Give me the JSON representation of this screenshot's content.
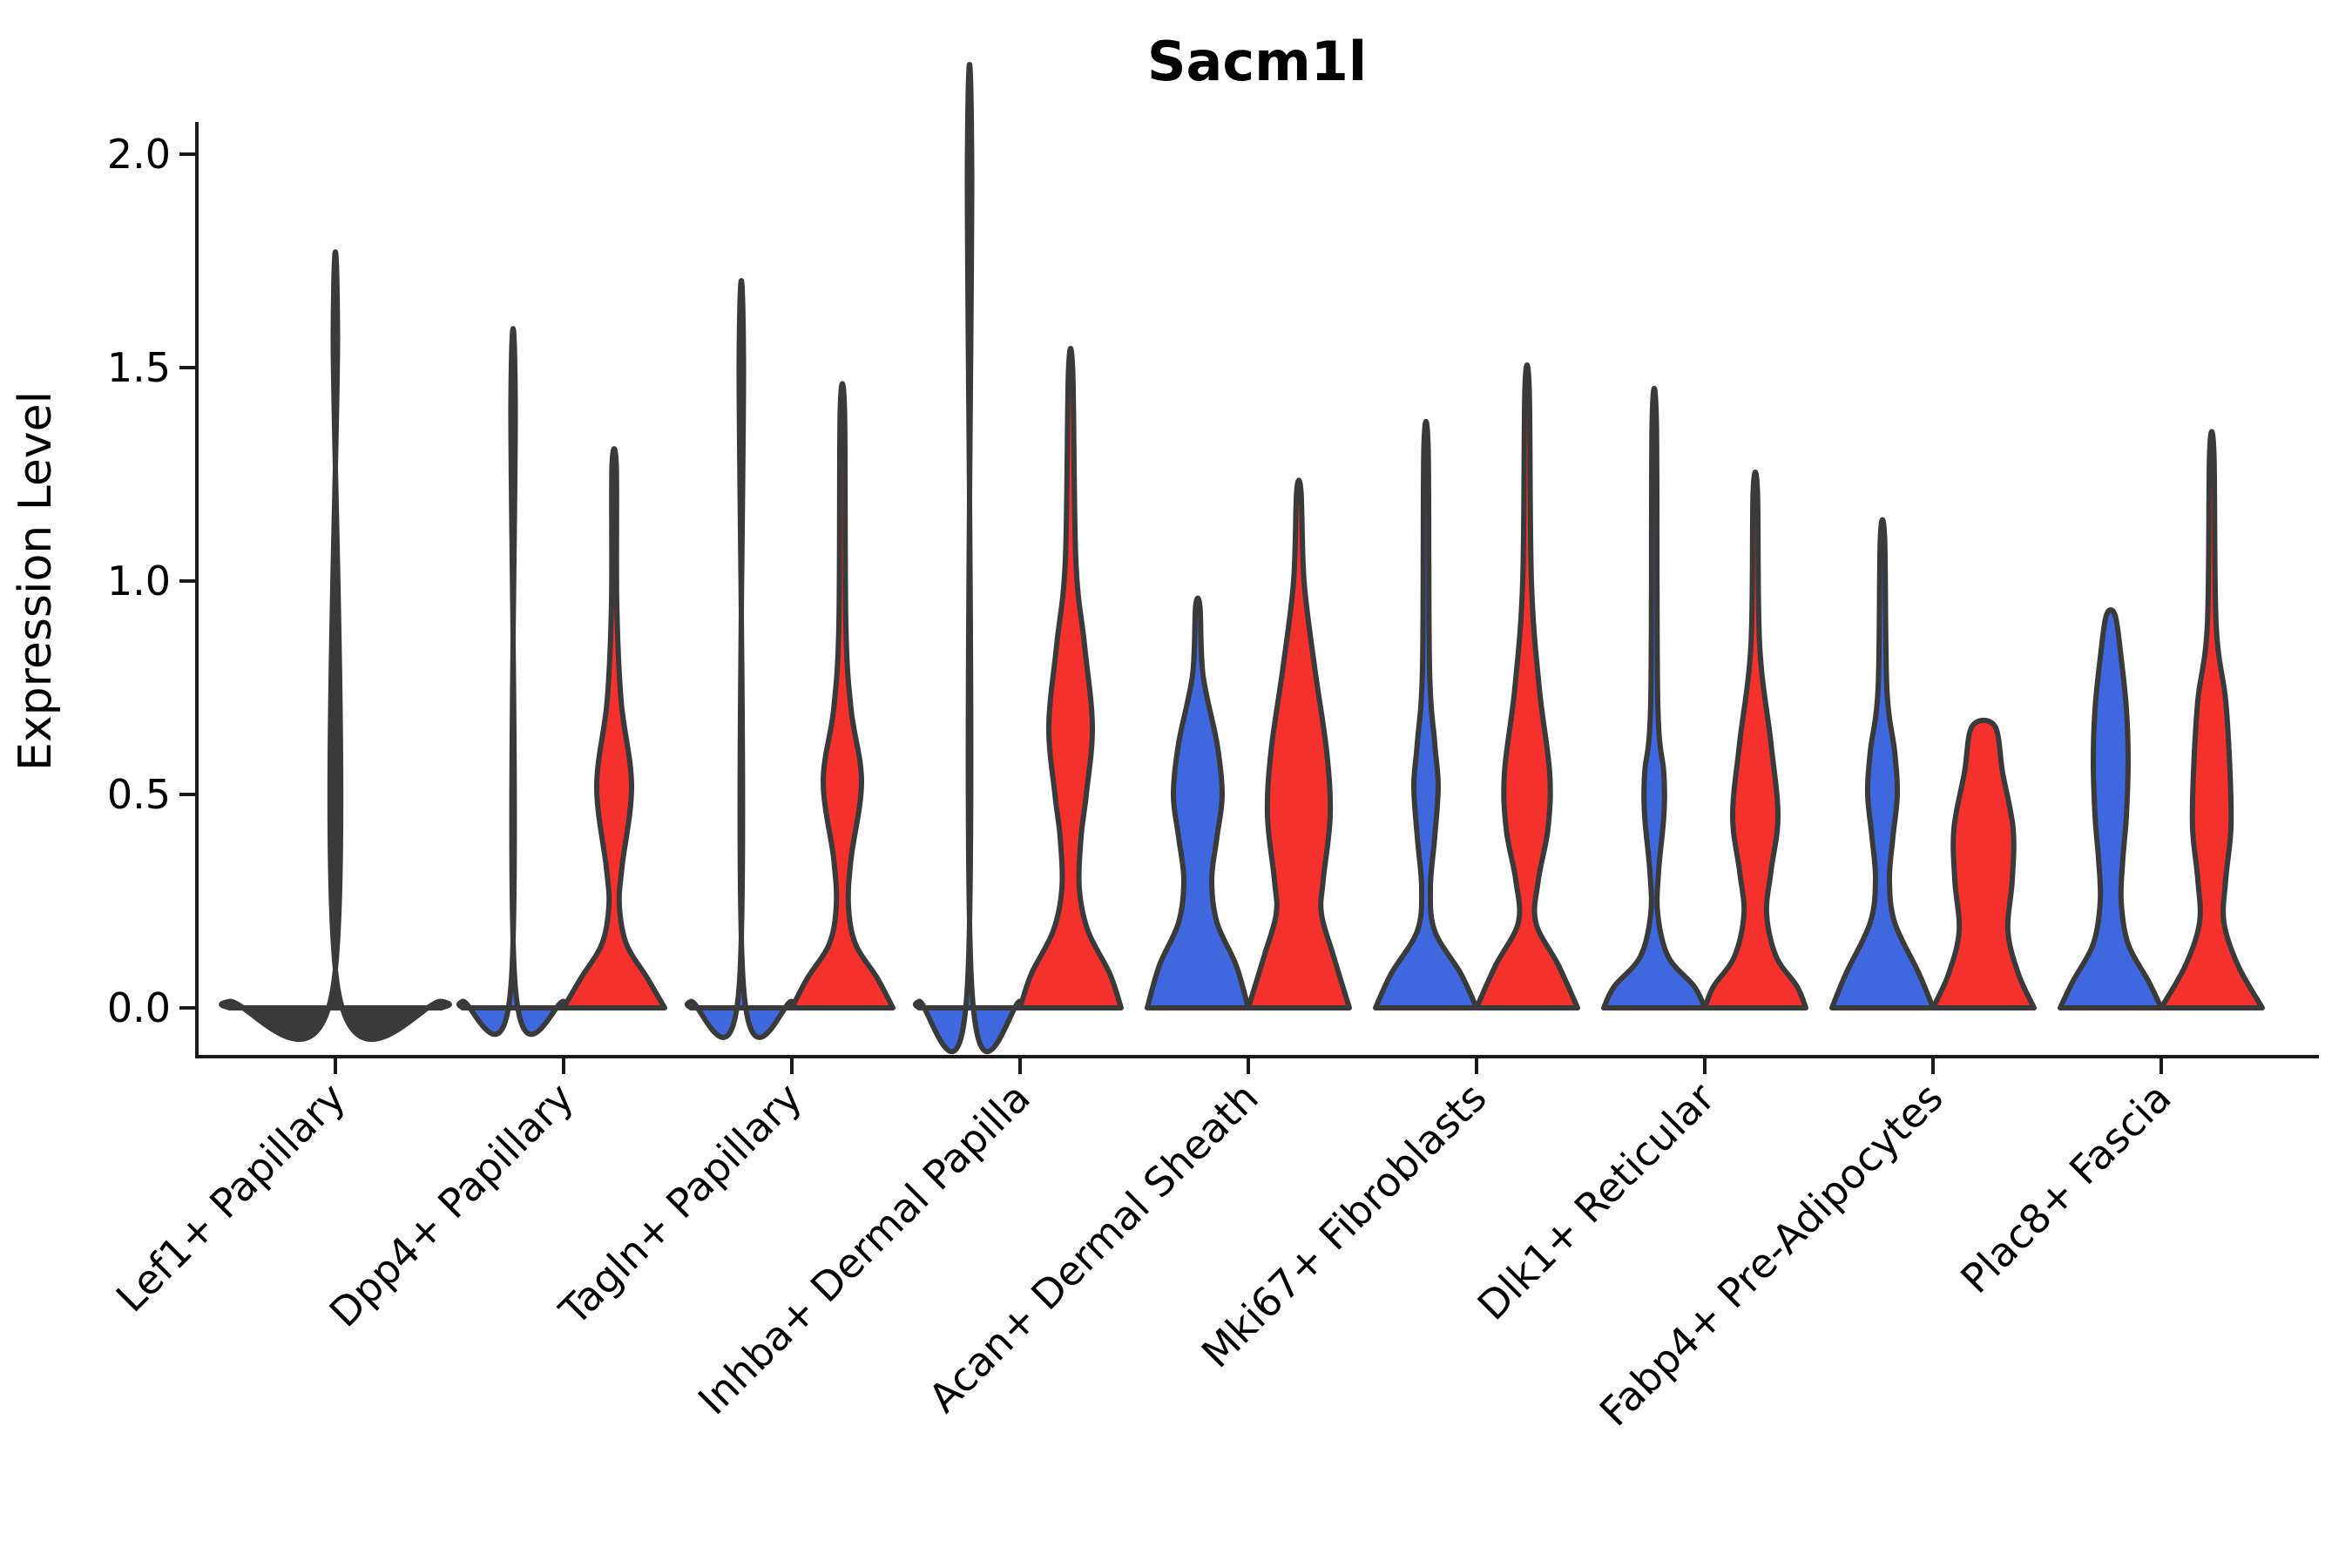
{
  "chart_data": {
    "type": "violin",
    "title": "Sacm1l",
    "ylabel": "Expression Level",
    "xlabel": "",
    "ylim": [
      0.0,
      2.0
    ],
    "y_ticks": [
      0.0,
      0.5,
      1.0,
      1.5,
      2.0
    ],
    "y_tick_labels": [
      "0.0",
      "0.5",
      "1.0",
      "1.5",
      "2.0"
    ],
    "grid": false,
    "legend": "none",
    "categories": [
      "Lef1+ Papillary",
      "Dpp4+ Papillary",
      "Tagln+ Papillary",
      "Inhba+ Dermal Papilla",
      "Acan+ Dermal Sheath",
      "Mki67+ Fibroblasts",
      "Dlk1+ Reticular",
      "Fabp4+ Pre-Adipocytes",
      "Plac8+ Fascia"
    ],
    "series": [
      {
        "name": "blue",
        "color": "#3F68DF"
      },
      {
        "name": "red",
        "color": "#F5312D"
      }
    ],
    "outline_color": "#3A3A3A",
    "violins": [
      {
        "category_index": 0,
        "series": "single",
        "fill": "#3A3A3A",
        "max": 1.58,
        "profile": [
          [
            1.58,
            2.5
          ],
          [
            0.05,
            2.5
          ],
          [
            0.015,
            122
          ],
          [
            0,
            122
          ]
        ]
      },
      {
        "category_index": 1,
        "series": "blue",
        "fill": "#3F68DF",
        "max": 1.42,
        "profile": [
          [
            1.42,
            2.5
          ],
          [
            0.05,
            2.5
          ],
          [
            0.015,
            58
          ],
          [
            0,
            58
          ]
        ]
      },
      {
        "category_index": 1,
        "series": "red",
        "fill": "#F5312D",
        "max": 1.27,
        "profile": [
          [
            1.27,
            2.5
          ],
          [
            0.95,
            3
          ],
          [
            0.72,
            8
          ],
          [
            0.52,
            20
          ],
          [
            0.33,
            9
          ],
          [
            0.24,
            6
          ],
          [
            0.15,
            14
          ],
          [
            0.07,
            38
          ],
          [
            0,
            58
          ]
        ]
      },
      {
        "category_index": 2,
        "series": "blue",
        "fill": "#3F68DF",
        "max": 1.52,
        "profile": [
          [
            1.52,
            2.5
          ],
          [
            0.05,
            2.5
          ],
          [
            0.015,
            58
          ],
          [
            0,
            58
          ]
        ]
      },
      {
        "category_index": 2,
        "series": "red",
        "fill": "#F5312D",
        "max": 1.4,
        "profile": [
          [
            1.4,
            2.5
          ],
          [
            0.9,
            4
          ],
          [
            0.7,
            10
          ],
          [
            0.53,
            22
          ],
          [
            0.35,
            10
          ],
          [
            0.24,
            7
          ],
          [
            0.15,
            15
          ],
          [
            0.07,
            40
          ],
          [
            0,
            58
          ]
        ]
      },
      {
        "category_index": 3,
        "series": "blue",
        "fill": "#3F68DF",
        "max": 1.97,
        "profile": [
          [
            1.97,
            2.5
          ],
          [
            0.05,
            2.5
          ],
          [
            0.015,
            58
          ],
          [
            0,
            58
          ]
        ]
      },
      {
        "category_index": 3,
        "series": "red",
        "fill": "#F5312D",
        "max": 1.49,
        "profile": [
          [
            1.49,
            2.5
          ],
          [
            1.05,
            6
          ],
          [
            0.85,
            16
          ],
          [
            0.66,
            25
          ],
          [
            0.5,
            18
          ],
          [
            0.4,
            12
          ],
          [
            0.28,
            10
          ],
          [
            0.18,
            20
          ],
          [
            0.08,
            45
          ],
          [
            0,
            58
          ]
        ]
      },
      {
        "category_index": 4,
        "series": "blue",
        "fill": "#3F68DF",
        "max": 0.94,
        "profile": [
          [
            0.94,
            2.5
          ],
          [
            0.78,
            6
          ],
          [
            0.62,
            22
          ],
          [
            0.5,
            28
          ],
          [
            0.4,
            22
          ],
          [
            0.3,
            16
          ],
          [
            0.2,
            22
          ],
          [
            0.1,
            44
          ],
          [
            0,
            58
          ]
        ]
      },
      {
        "category_index": 4,
        "series": "red",
        "fill": "#F5312D",
        "max": 1.21,
        "profile": [
          [
            1.21,
            2.5
          ],
          [
            1.0,
            6
          ],
          [
            0.8,
            18
          ],
          [
            0.6,
            32
          ],
          [
            0.45,
            36
          ],
          [
            0.3,
            28
          ],
          [
            0.22,
            26
          ],
          [
            0.12,
            40
          ],
          [
            0,
            58
          ]
        ]
      },
      {
        "category_index": 5,
        "series": "blue",
        "fill": "#3F68DF",
        "max": 1.31,
        "profile": [
          [
            1.31,
            2.5
          ],
          [
            0.8,
            4
          ],
          [
            0.62,
            10
          ],
          [
            0.52,
            14
          ],
          [
            0.4,
            10
          ],
          [
            0.28,
            5
          ],
          [
            0.18,
            10
          ],
          [
            0.08,
            40
          ],
          [
            0,
            58
          ]
        ]
      },
      {
        "category_index": 5,
        "series": "red",
        "fill": "#F5312D",
        "max": 1.45,
        "profile": [
          [
            1.45,
            2.5
          ],
          [
            1.0,
            5
          ],
          [
            0.75,
            14
          ],
          [
            0.55,
            26
          ],
          [
            0.42,
            24
          ],
          [
            0.3,
            13
          ],
          [
            0.2,
            10
          ],
          [
            0.1,
            36
          ],
          [
            0,
            58
          ]
        ]
      },
      {
        "category_index": 6,
        "series": "blue",
        "fill": "#3F68DF",
        "max": 1.37,
        "profile": [
          [
            1.37,
            2.5
          ],
          [
            0.72,
            4
          ],
          [
            0.55,
            11
          ],
          [
            0.45,
            11
          ],
          [
            0.32,
            5
          ],
          [
            0.22,
            4
          ],
          [
            0.12,
            16
          ],
          [
            0.05,
            46
          ],
          [
            0,
            58
          ]
        ]
      },
      {
        "category_index": 6,
        "series": "red",
        "fill": "#F5312D",
        "max": 1.21,
        "profile": [
          [
            1.21,
            2.5
          ],
          [
            0.85,
            5
          ],
          [
            0.62,
            18
          ],
          [
            0.45,
            26
          ],
          [
            0.32,
            18
          ],
          [
            0.22,
            13
          ],
          [
            0.12,
            24
          ],
          [
            0.05,
            48
          ],
          [
            0,
            58
          ]
        ]
      },
      {
        "category_index": 7,
        "series": "blue",
        "fill": "#3F68DF",
        "max": 1.1,
        "profile": [
          [
            1.1,
            2.5
          ],
          [
            0.75,
            5
          ],
          [
            0.6,
            14
          ],
          [
            0.5,
            17
          ],
          [
            0.4,
            12
          ],
          [
            0.3,
            8
          ],
          [
            0.2,
            14
          ],
          [
            0.08,
            42
          ],
          [
            0,
            58
          ]
        ]
      },
      {
        "category_index": 7,
        "series": "red",
        "fill": "#F5312D",
        "max": 0.66,
        "profile": [
          [
            0.66,
            13
          ],
          [
            0.55,
            22
          ],
          [
            0.42,
            34
          ],
          [
            0.3,
            33
          ],
          [
            0.18,
            28
          ],
          [
            0.08,
            40
          ],
          [
            0,
            58
          ]
        ]
      },
      {
        "category_index": 8,
        "series": "blue",
        "fill": "#3F68DF",
        "max": 0.92,
        "profile": [
          [
            0.92,
            5
          ],
          [
            0.82,
            12
          ],
          [
            0.7,
            18
          ],
          [
            0.58,
            20
          ],
          [
            0.45,
            18
          ],
          [
            0.35,
            14
          ],
          [
            0.25,
            12
          ],
          [
            0.15,
            20
          ],
          [
            0.06,
            44
          ],
          [
            0,
            58
          ]
        ]
      },
      {
        "category_index": 8,
        "series": "red",
        "fill": "#F5312D",
        "max": 1.3,
        "profile": [
          [
            1.3,
            2.5
          ],
          [
            0.9,
            5
          ],
          [
            0.72,
            16
          ],
          [
            0.55,
            21
          ],
          [
            0.42,
            22
          ],
          [
            0.3,
            16
          ],
          [
            0.2,
            14
          ],
          [
            0.1,
            30
          ],
          [
            0,
            58
          ]
        ]
      }
    ]
  }
}
